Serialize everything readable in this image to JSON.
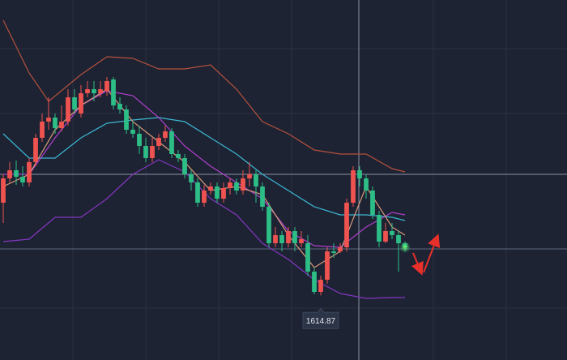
{
  "chart_data": {
    "type": "candlestick",
    "ylim": [
      1575,
      1797
    ],
    "xlim": [
      -0.5,
      87
    ],
    "up_color": "#ef5350",
    "down_color": "#2dbd86",
    "ohlc": [
      [
        1672,
        1689.5,
        1659.5,
        1687
      ],
      [
        1687,
        1697,
        1684.5,
        1692
      ],
      [
        1692,
        1698,
        1683,
        1688
      ],
      [
        1688,
        1694.5,
        1682,
        1684.5
      ],
      [
        1684.5,
        1699.5,
        1682,
        1697
      ],
      [
        1697,
        1714.5,
        1694.5,
        1712
      ],
      [
        1712,
        1727,
        1709.5,
        1722
      ],
      [
        1722,
        1737,
        1717,
        1724.5
      ],
      [
        1724.5,
        1727,
        1714.5,
        1718
      ],
      [
        1718,
        1732,
        1716,
        1722
      ],
      [
        1722,
        1742,
        1719.5,
        1737
      ],
      [
        1737,
        1742,
        1727,
        1729.5
      ],
      [
        1727,
        1744.5,
        1724.5,
        1739.5
      ],
      [
        1739.5,
        1747,
        1737,
        1742
      ],
      [
        1742,
        1747,
        1734.5,
        1739.5
      ],
      [
        1739.5,
        1747,
        1737,
        1742
      ],
      [
        1741,
        1749.5,
        1738,
        1747
      ],
      [
        1748,
        1749.5,
        1729.5,
        1732
      ],
      [
        1733,
        1737,
        1727,
        1729.5
      ],
      [
        1729.5,
        1732,
        1714.5,
        1717
      ],
      [
        1717,
        1722,
        1712,
        1714.5
      ],
      [
        1714.5,
        1719.5,
        1702,
        1707
      ],
      [
        1707,
        1712,
        1697,
        1699.5
      ],
      [
        1699.5,
        1712,
        1697,
        1707
      ],
      [
        1707,
        1714.5,
        1704.5,
        1712
      ],
      [
        1712,
        1719.5,
        1709.5,
        1716
      ],
      [
        1716,
        1718,
        1699.5,
        1702
      ],
      [
        1702,
        1704.5,
        1697,
        1699.5
      ],
      [
        1699.5,
        1702,
        1687,
        1689.5
      ],
      [
        1689.5,
        1692,
        1679.5,
        1684.5
      ],
      [
        1684.5,
        1687,
        1669.5,
        1672
      ],
      [
        1672,
        1683,
        1669.5,
        1679.5
      ],
      [
        1679.5,
        1684.5,
        1677,
        1682
      ],
      [
        1682,
        1684.5,
        1672,
        1674.5
      ],
      [
        1674.5,
        1684.5,
        1672,
        1681
      ],
      [
        1681,
        1687,
        1677,
        1684.5
      ],
      [
        1684.5,
        1687,
        1677,
        1679.5
      ],
      [
        1679.5,
        1692,
        1677,
        1687
      ],
      [
        1687,
        1697,
        1682,
        1689.5
      ],
      [
        1689.5,
        1692,
        1672,
        1682
      ],
      [
        1682,
        1684.5,
        1667,
        1669.5
      ],
      [
        1669.5,
        1672,
        1644.5,
        1647
      ],
      [
        1647,
        1657,
        1644.5,
        1652
      ],
      [
        1652,
        1654.5,
        1642,
        1647
      ],
      [
        1647,
        1657,
        1644.5,
        1654.5
      ],
      [
        1654.5,
        1657,
        1642,
        1647
      ],
      [
        1647,
        1654.5,
        1644.5,
        1649.5
      ],
      [
        1647,
        1652,
        1627,
        1629.5
      ],
      [
        1629.5,
        1632,
        1615.5,
        1617
      ],
      [
        1617,
        1627,
        1614.87,
        1624.5
      ],
      [
        1624.5,
        1644.5,
        1622,
        1642
      ],
      [
        1642,
        1647,
        1638,
        1641
      ],
      [
        1642,
        1647,
        1641,
        1644.5
      ],
      [
        1644.5,
        1674.5,
        1642,
        1672
      ],
      [
        1672,
        1694.5,
        1669.5,
        1692
      ],
      [
        1692,
        1694.5,
        1682,
        1687
      ],
      [
        1687,
        1689.5,
        1674.5,
        1679.5
      ],
      [
        1679.5,
        1682,
        1662,
        1664.5
      ],
      [
        1664.5,
        1667,
        1644.5,
        1648
      ],
      [
        1648,
        1659.5,
        1647,
        1654.5
      ],
      [
        1654.5,
        1659.5,
        1649.5,
        1652
      ],
      [
        1652,
        1654.5,
        1629.5,
        1647
      ],
      [
        1647,
        1648,
        1642,
        1644.5
      ]
    ],
    "overlays": [
      {
        "color": "#b5503c",
        "x": [
          0,
          4,
          7,
          12,
          16,
          20,
          24,
          28,
          32,
          36,
          40,
          44,
          48,
          52,
          56,
          60,
          62
        ],
        "values": [
          1784.5,
          1752,
          1734.5,
          1751,
          1762,
          1761,
          1754.5,
          1754.5,
          1757,
          1742,
          1722,
          1714.5,
          1704.5,
          1702,
          1702,
          1693,
          1691
        ]
      },
      {
        "color": "#3bb6d2",
        "x": [
          0,
          4,
          8,
          12,
          16,
          20,
          24,
          28,
          32,
          36,
          40,
          44,
          48,
          52,
          56,
          60,
          62
        ],
        "values": [
          1714.5,
          1699.5,
          1699.5,
          1712,
          1721,
          1723,
          1724.5,
          1722,
          1712,
          1702,
          1689.5,
          1679.5,
          1669.5,
          1664.5,
          1664.5,
          1663,
          1661
        ]
      },
      {
        "color": "#b03fcc",
        "x": [
          0,
          4,
          8,
          12,
          16,
          20,
          24,
          28,
          32,
          36,
          40,
          44,
          48,
          52,
          56,
          60,
          62
        ],
        "values": [
          1689.5,
          1689.5,
          1712,
          1732,
          1741,
          1738,
          1724.5,
          1707,
          1694.5,
          1684.5,
          1674.5,
          1654.5,
          1645.5,
          1644.5,
          1657,
          1666,
          1664.5
        ]
      },
      {
        "color": "#8436c0",
        "x": [
          0,
          4,
          8,
          12,
          16,
          20,
          24,
          28,
          32,
          36,
          40,
          44,
          48,
          52,
          56,
          60,
          62
        ],
        "values": [
          1648,
          1649.5,
          1663,
          1663,
          1674.5,
          1689.5,
          1698.5,
          1691,
          1674.5,
          1664.5,
          1647,
          1637,
          1624.5,
          1616,
          1613,
          1613.5,
          1613.5
        ]
      },
      {
        "color": "#d99a7a",
        "x": [
          0,
          4,
          8,
          12,
          16,
          20,
          24,
          28,
          32,
          36,
          40,
          44,
          48,
          52,
          56,
          60,
          62
        ],
        "values": [
          1682,
          1689.5,
          1717,
          1732,
          1742,
          1722,
          1709.5,
          1697,
          1679.5,
          1682,
          1677,
          1652,
          1632,
          1642,
          1682,
          1657,
          1652
        ]
      }
    ],
    "annotations": [
      {
        "label": "1614.87",
        "value": 1614.87,
        "x": 49
      }
    ]
  }
}
